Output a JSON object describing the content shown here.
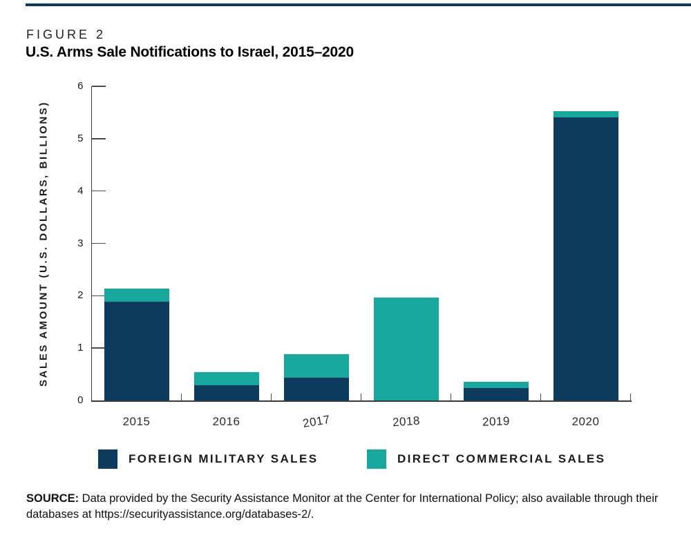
{
  "figure": {
    "kicker": "FIGURE 2",
    "title": "U.S. Arms Sale Notifications to Israel, 2015–2020"
  },
  "chart_data": {
    "type": "bar",
    "stacked": true,
    "title": "U.S. Arms Sale Notifications to Israel, 2015–2020",
    "categories": [
      "2015",
      "2016",
      "2017",
      "2018",
      "2019",
      "2020"
    ],
    "series": [
      {
        "name": "FOREIGN MILITARY SALES",
        "color": "#0d3b5d",
        "values": [
          1.88,
          0.29,
          0.44,
          0,
          0.24,
          5.41
        ]
      },
      {
        "name": "DIRECT COMMERCIAL SALES",
        "color": "#18a79d",
        "values": [
          0.25,
          0.25,
          0.45,
          1.96,
          0.12,
          0.11
        ]
      }
    ],
    "xlabel": "",
    "ylabel": "SALES AMOUNT (U.S. DOLLARS, BILLIONS)",
    "yticks": [
      0,
      1,
      2,
      3,
      4,
      5,
      6
    ],
    "ylim": [
      0,
      6
    ],
    "grid": false,
    "legend_position": "bottom"
  },
  "legend": {
    "items": [
      {
        "label": "FOREIGN MILITARY SALES",
        "color": "#0d3b5d"
      },
      {
        "label": "DIRECT COMMERCIAL SALES",
        "color": "#18a79d"
      }
    ]
  },
  "source": {
    "label": "SOURCE:",
    "text": " Data provided by the Security Assistance Monitor at the Center for International Policy; also available through their databases at https://securityassistance.org/databases-2/."
  },
  "colors": {
    "navy": "#0d3b5d",
    "teal": "#18a79d",
    "top_rule": "#0d3b5d",
    "axis": "#3a3a3a"
  }
}
